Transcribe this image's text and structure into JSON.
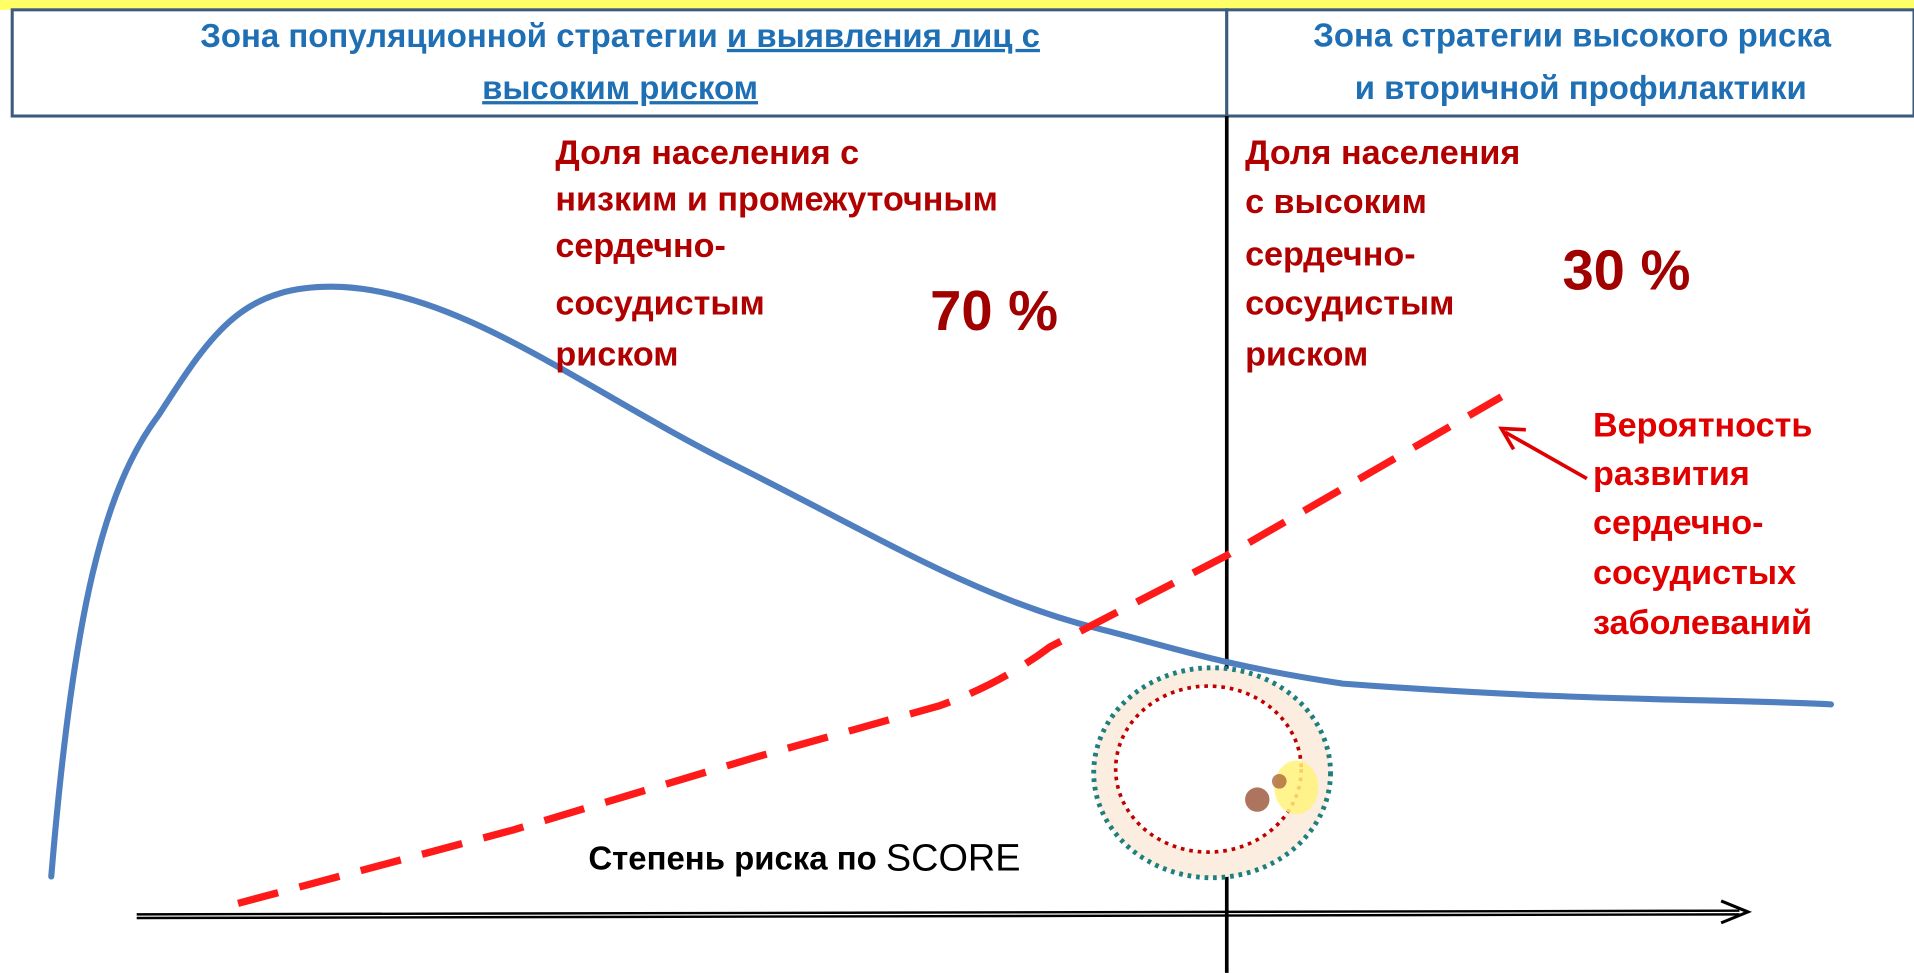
{
  "header": {
    "left": {
      "line1_plain": "Зона популяционной стратегии",
      "line1_underlined": "и выявления лиц с",
      "line2_underlined": "высоким риском"
    },
    "right": {
      "lines": [
        "Зона стратегии высокого риска",
        "и вторичной профилактики"
      ]
    }
  },
  "low_risk_share": {
    "lines": [
      "Доля населения с",
      "низким и промежуточным",
      "сердечно-",
      "сосудистым",
      "риском"
    ],
    "percent": "70 %"
  },
  "high_risk_share": {
    "lines": [
      "Доля населения",
      "с высоким",
      "сердечно-",
      "сосудистым",
      "риском"
    ],
    "percent": "30 %"
  },
  "probability_label": {
    "lines": [
      "Вероятность",
      "развития",
      "сердечно-",
      "сосудистых",
      "заболеваний"
    ]
  },
  "axis_label": {
    "bold": "Степень риска по",
    "plain": "SCORE"
  }
}
